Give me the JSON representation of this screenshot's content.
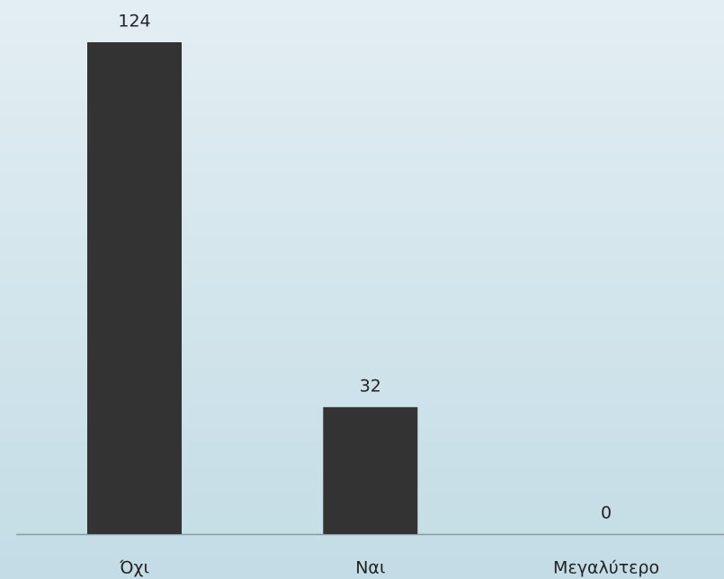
{
  "chart_data": {
    "type": "bar",
    "categories": [
      "Όχι",
      "Ναι",
      "Μεγαλύτερο"
    ],
    "values": [
      124,
      32,
      0
    ],
    "color": "#333333"
  }
}
